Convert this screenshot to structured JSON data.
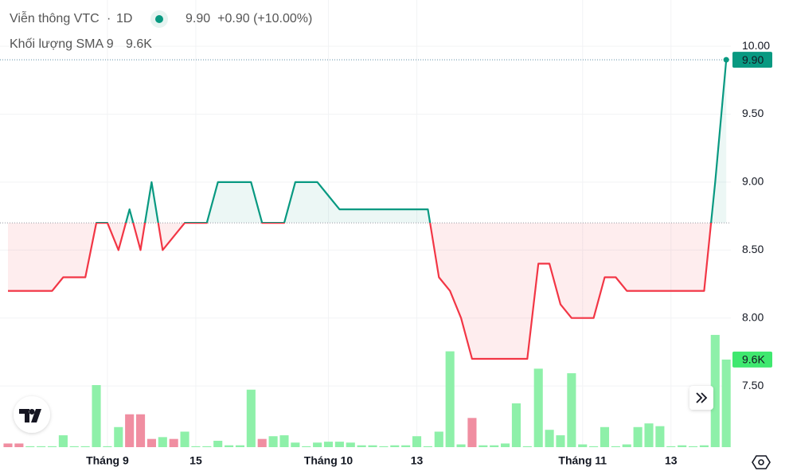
{
  "chart_data": [
    {
      "type": "baseline",
      "title": "Viễn thông VTC",
      "separator": "·",
      "interval": "1D",
      "last": {
        "value": 9.9,
        "label": "9.90"
      },
      "change": "+0.90 (+10.00%)",
      "baseline": 8.7,
      "up_color": "#089981",
      "down_color": "#f23645",
      "up_fill": "rgba(8,153,129,0.08)",
      "down_fill": "rgba(242,54,69,0.09)",
      "grid": true,
      "xlim": [
        -0.72,
        65.42
      ],
      "ylim": [
        7.05,
        10.34
      ],
      "yticks": [
        {
          "value": 10,
          "label": "10.00"
        },
        {
          "value": 9.5,
          "label": "9.50"
        },
        {
          "value": 9,
          "label": "9.00"
        },
        {
          "value": 8.5,
          "label": "8.50"
        },
        {
          "value": 8,
          "label": "8.00"
        },
        {
          "value": 7.5,
          "label": "7.50"
        }
      ],
      "xticks": [
        {
          "value": 9,
          "label": "Tháng 9"
        },
        {
          "value": 17,
          "label": "15"
        },
        {
          "value": 29,
          "label": "Tháng 10"
        },
        {
          "value": 37,
          "label": "13"
        },
        {
          "value": 52,
          "label": "Tháng 11"
        },
        {
          "value": 60,
          "label": "13"
        }
      ],
      "values": [
        8.2,
        8.2,
        8.2,
        8.2,
        8.2,
        8.3,
        8.3,
        8.3,
        8.7,
        8.7,
        8.5,
        8.8,
        8.5,
        9.0,
        8.5,
        8.6,
        8.7,
        8.7,
        8.7,
        9.0,
        9.0,
        9.0,
        9.0,
        8.7,
        8.7,
        8.7,
        9.0,
        9.0,
        9.0,
        8.9,
        8.8,
        8.8,
        8.8,
        8.8,
        8.8,
        8.8,
        8.8,
        8.8,
        8.8,
        8.3,
        8.2,
        8.0,
        7.7,
        7.7,
        7.7,
        7.7,
        7.7,
        7.7,
        8.4,
        8.4,
        8.1,
        8.0,
        8.0,
        8.0,
        8.3,
        8.3,
        8.2,
        8.2,
        8.2,
        8.2,
        8.2,
        8.2,
        8.2,
        8.2,
        9.0,
        9.9
      ]
    },
    {
      "type": "bar",
      "name": "Khối lượng SMA 9",
      "sma": {
        "value": 9.6,
        "label": "9.6K"
      },
      "label_color": "#3fe86f",
      "xlim": [
        -0.72,
        65.42
      ],
      "ylim": [
        0,
        49
      ],
      "values": [
        0.4,
        0.4,
        0.1,
        0.1,
        0.1,
        1.3,
        0.1,
        0.1,
        6.8,
        0.1,
        2.2,
        3.6,
        3.6,
        0.9,
        1.1,
        0.9,
        1.7,
        0.1,
        0.1,
        0.7,
        0.2,
        0.2,
        6.3,
        0.9,
        1.2,
        1.3,
        0.5,
        0.1,
        0.5,
        0.6,
        0.6,
        0.5,
        0.2,
        0.2,
        0.1,
        0.2,
        0.2,
        1.2,
        0.1,
        1.7,
        10.5,
        0.3,
        3.2,
        0.2,
        0.2,
        0.4,
        4.8,
        0.1,
        8.6,
        1.9,
        1.3,
        8.1,
        0.3,
        0.1,
        2.2,
        0.1,
        0.3,
        2.2,
        2.6,
        2.3,
        0.1,
        0.2,
        0.1,
        0.2,
        12.3,
        9.6
      ],
      "colors": [
        "#f08ea1",
        "#f08ea1",
        "#8ef0a9",
        "#8ef0a9",
        "#8ef0a9",
        "#8ef0a9",
        "#8ef0a9",
        "#8ef0a9",
        "#8ef0a9",
        "#8ef0a9",
        "#8ef0a9",
        "#f08ea1",
        "#f08ea1",
        "#f08ea1",
        "#8ef0a9",
        "#f08ea1",
        "#8ef0a9",
        "#8ef0a9",
        "#8ef0a9",
        "#8ef0a9",
        "#8ef0a9",
        "#8ef0a9",
        "#8ef0a9",
        "#f08ea1",
        "#8ef0a9",
        "#8ef0a9",
        "#8ef0a9",
        "#8ef0a9",
        "#8ef0a9",
        "#8ef0a9",
        "#8ef0a9",
        "#8ef0a9",
        "#8ef0a9",
        "#8ef0a9",
        "#8ef0a9",
        "#8ef0a9",
        "#8ef0a9",
        "#8ef0a9",
        "#8ef0a9",
        "#8ef0a9",
        "#8ef0a9",
        "#8ef0a9",
        "#f08ea1",
        "#8ef0a9",
        "#8ef0a9",
        "#8ef0a9",
        "#8ef0a9",
        "#8ef0a9",
        "#8ef0a9",
        "#8ef0a9",
        "#8ef0a9",
        "#8ef0a9",
        "#8ef0a9",
        "#8ef0a9",
        "#8ef0a9",
        "#8ef0a9",
        "#8ef0a9",
        "#8ef0a9",
        "#8ef0a9",
        "#8ef0a9",
        "#8ef0a9",
        "#8ef0a9",
        "#8ef0a9",
        "#8ef0a9",
        "#8ef0a9",
        "#8ef0a9"
      ]
    }
  ]
}
